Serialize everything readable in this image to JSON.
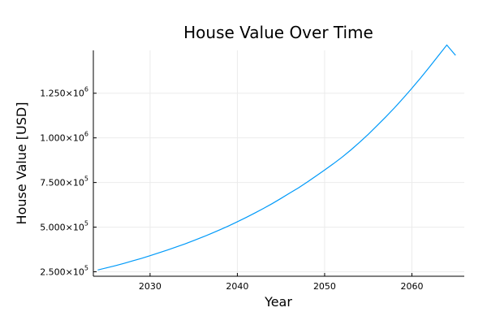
{
  "chart_data": {
    "type": "line",
    "title": "House Value Over Time",
    "xlabel": "Year",
    "ylabel": "House Value [USD]",
    "xlim": [
      2023.5,
      2066.0
    ],
    "ylim": [
      225000,
      1490000
    ],
    "xticks": [
      2030,
      2040,
      2050,
      2060
    ],
    "xtick_labels": [
      "2030",
      "2040",
      "2050",
      "2060"
    ],
    "yticks": [
      250000,
      500000,
      750000,
      1000000,
      1250000
    ],
    "ytick_labels": [
      {
        "mantissa": "2.500",
        "times": "×",
        "base": "10",
        "exponent": "5"
      },
      {
        "mantissa": "5.000",
        "times": "×",
        "base": "10",
        "exponent": "5"
      },
      {
        "mantissa": "7.500",
        "times": "×",
        "base": "10",
        "exponent": "5"
      },
      {
        "mantissa": "1.000",
        "times": "×",
        "base": "10",
        "exponent": "6"
      },
      {
        "mantissa": "1.250",
        "times": "×",
        "base": "10",
        "exponent": "6"
      }
    ],
    "grid": true,
    "legend": false,
    "series": [
      {
        "color": "#009af9",
        "x": [
          2024,
          2025,
          2026,
          2027,
          2028,
          2029,
          2030,
          2031,
          2032,
          2033,
          2034,
          2035,
          2036,
          2037,
          2038,
          2039,
          2040,
          2041,
          2042,
          2043,
          2044,
          2045,
          2046,
          2047,
          2048,
          2049,
          2050,
          2051,
          2052,
          2053,
          2054,
          2055,
          2056,
          2057,
          2058,
          2059,
          2060,
          2061,
          2062,
          2063,
          2064,
          2065
        ],
        "y": [
          260000,
          272000,
          284000,
          297000,
          311000,
          325000,
          340000,
          356000,
          372000,
          389000,
          406000,
          425000,
          444000,
          464000,
          485000,
          507000,
          530000,
          554000,
          579000,
          605000,
          632000,
          661000,
          691000,
          720000,
          752000,
          786000,
          820000,
          855000,
          892000,
          932000,
          975000,
          1020000,
          1068000,
          1117000,
          1168000,
          1222000,
          1278000,
          1336000,
          1396000,
          1458000,
          1520000,
          1462000
        ]
      }
    ]
  }
}
